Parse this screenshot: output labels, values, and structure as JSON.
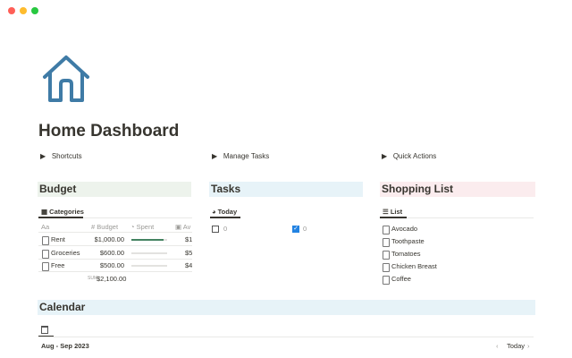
{
  "page": {
    "title": "Home Dashboard",
    "toggles": [
      "Shortcuts",
      "Manage Tasks",
      "Quick Actions"
    ],
    "budget": {
      "title": "Budget",
      "tab": "Categories",
      "name_icon": "Aa",
      "columns": [
        "Budget",
        "Spent",
        "Av"
      ],
      "rows": [
        {
          "name": "Rent",
          "budget": "$1,000.00",
          "spent_progress": 0.9,
          "available": "$1"
        },
        {
          "name": "Groceries",
          "budget": "$600.00",
          "spent_progress": 0,
          "available": "$5"
        },
        {
          "name": "Free",
          "budget": "$500.00",
          "spent_progress": 0,
          "available": "$4"
        }
      ],
      "sum_label": "SUM",
      "sum": "$2,100.00"
    },
    "tasks": {
      "title": "Tasks",
      "tab": "Today",
      "unchecked_count": "0",
      "checked_count": "0"
    },
    "shopping": {
      "title": "Shopping List",
      "tab": "List",
      "items": [
        "Avocado",
        "Toothpaste",
        "Tomatoes",
        "Chicken Breast",
        "Coffee"
      ]
    },
    "calendar": {
      "title": "Calendar",
      "range": "Aug - Sep 2023",
      "today": "Today"
    }
  }
}
